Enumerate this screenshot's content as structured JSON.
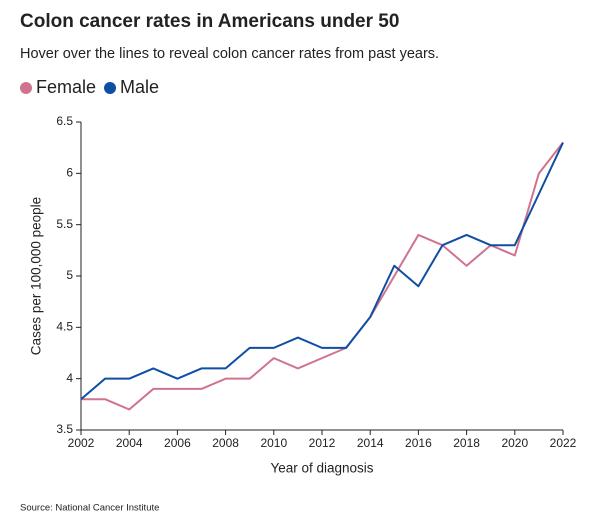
{
  "chart_data": {
    "type": "line",
    "title": "Colon cancer rates in Americans under 50",
    "subtitle": "Hover over the lines to reveal colon cancer rates from past years.",
    "x_label": "Year of diagnosis",
    "y_label": "Cases per 100,000 people",
    "source": "Source: National Cancer Institute",
    "x": [
      2002,
      2003,
      2004,
      2005,
      2006,
      2007,
      2008,
      2009,
      2010,
      2011,
      2012,
      2013,
      2014,
      2015,
      2016,
      2017,
      2018,
      2019,
      2020,
      2021,
      2022
    ],
    "series": [
      {
        "name": "Female",
        "color": "#d0738f",
        "values": [
          3.8,
          3.8,
          3.7,
          3.9,
          3.9,
          3.9,
          4.0,
          4.0,
          4.2,
          4.1,
          4.2,
          4.3,
          4.6,
          5.0,
          5.4,
          5.3,
          5.1,
          5.3,
          5.2,
          6.0,
          6.3
        ]
      },
      {
        "name": "Male",
        "color": "#0f4ea3",
        "values": [
          3.8,
          4.0,
          4.0,
          4.1,
          4.0,
          4.1,
          4.1,
          4.3,
          4.3,
          4.4,
          4.3,
          4.3,
          4.6,
          5.1,
          4.9,
          5.3,
          5.4,
          5.3,
          5.3,
          5.8,
          6.3
        ]
      }
    ],
    "xlim": [
      2002,
      2022
    ],
    "xticks": [
      2002,
      2004,
      2006,
      2008,
      2010,
      2012,
      2014,
      2016,
      2018,
      2020,
      2022
    ],
    "ylim": [
      3.5,
      6.5
    ],
    "yticks": [
      3.5,
      4,
      4.5,
      5,
      5.5,
      6,
      6.5
    ],
    "legend": "top-left",
    "grid": false
  }
}
